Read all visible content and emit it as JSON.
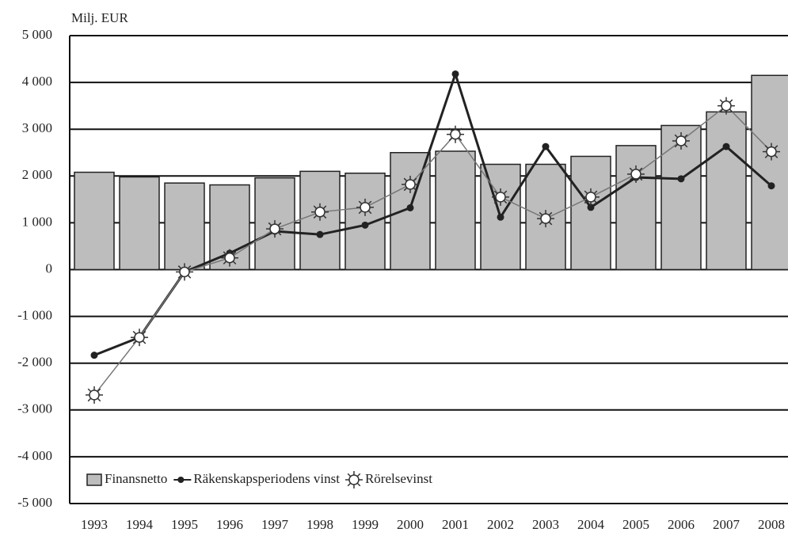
{
  "chart_data": {
    "type": "bar-line",
    "y_axis_label": "Milj. EUR",
    "categories": [
      "1993",
      "1994",
      "1995",
      "1996",
      "1997",
      "1998",
      "1999",
      "2000",
      "2001",
      "2002",
      "2003",
      "2004",
      "2005",
      "2006",
      "2007",
      "2008"
    ],
    "series": [
      {
        "name": "Finansnetto",
        "type": "bar",
        "color": "#bdbdbd",
        "values": [
          2080,
          1980,
          1850,
          1810,
          1960,
          2100,
          2060,
          2500,
          2530,
          2250,
          2250,
          2420,
          2650,
          3080,
          3370,
          4150
        ]
      },
      {
        "name": "Räkenskapsperiodens vinst",
        "type": "line",
        "color": "#222222",
        "values": [
          -1830,
          -1450,
          -50,
          350,
          820,
          750,
          950,
          1320,
          4180,
          1120,
          2630,
          1330,
          1970,
          1940,
          2630,
          1790
        ]
      },
      {
        "name": "Rörelsevinst",
        "type": "line-sun",
        "color": "#777777",
        "values": [
          -2680,
          -1450,
          -50,
          250,
          870,
          1230,
          1330,
          1820,
          2890,
          1550,
          1090,
          1550,
          2040,
          2750,
          3500,
          2520
        ]
      }
    ],
    "ylim": [
      -5000,
      5000
    ],
    "yticks": [
      {
        "value": -5000,
        "label": "-5 000"
      },
      {
        "value": -4000,
        "label": "-4 000"
      },
      {
        "value": -3000,
        "label": "-3 000"
      },
      {
        "value": -2000,
        "label": "-2 000"
      },
      {
        "value": -1000,
        "label": "-1 000"
      },
      0,
      {
        "value": 1000,
        "label": "1 000"
      },
      {
        "value": 2000,
        "label": "2 000"
      },
      {
        "value": 3000,
        "label": "3 000"
      },
      {
        "value": 4000,
        "label": "4 000"
      },
      {
        "value": 5000,
        "label": "5 000"
      }
    ],
    "grid": true,
    "legend": "lower left"
  }
}
